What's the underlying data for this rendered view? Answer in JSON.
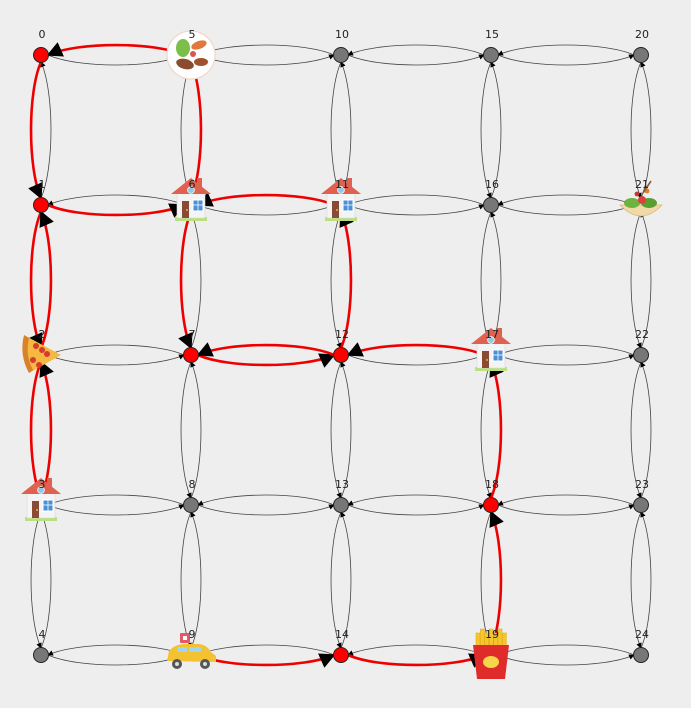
{
  "graph": {
    "nodes": [
      {
        "id": 0,
        "label": "0",
        "state": "red",
        "icon": null
      },
      {
        "id": 1,
        "label": "1",
        "state": "red",
        "icon": null
      },
      {
        "id": 2,
        "label": "2",
        "state": "red",
        "icon": "pizza-icon"
      },
      {
        "id": 3,
        "label": "3",
        "state": "red",
        "icon": "house-icon"
      },
      {
        "id": 4,
        "label": "4",
        "state": "grey",
        "icon": null
      },
      {
        "id": 5,
        "label": "5",
        "state": "red",
        "icon": "food-bowl-icon"
      },
      {
        "id": 6,
        "label": "6",
        "state": "red",
        "icon": "house-icon"
      },
      {
        "id": 7,
        "label": "7",
        "state": "red",
        "icon": null
      },
      {
        "id": 8,
        "label": "8",
        "state": "grey",
        "icon": null
      },
      {
        "id": 9,
        "label": "9",
        "state": "red",
        "icon": "taxi-icon"
      },
      {
        "id": 10,
        "label": "10",
        "state": "grey",
        "icon": null
      },
      {
        "id": 11,
        "label": "11",
        "state": "red",
        "icon": "house-icon"
      },
      {
        "id": 12,
        "label": "12",
        "state": "red",
        "icon": null
      },
      {
        "id": 13,
        "label": "13",
        "state": "grey",
        "icon": null
      },
      {
        "id": 14,
        "label": "14",
        "state": "red",
        "icon": null
      },
      {
        "id": 15,
        "label": "15",
        "state": "grey",
        "icon": null
      },
      {
        "id": 16,
        "label": "16",
        "state": "grey",
        "icon": null
      },
      {
        "id": 17,
        "label": "17",
        "state": "red",
        "icon": "house-icon"
      },
      {
        "id": 18,
        "label": "18",
        "state": "red",
        "icon": null
      },
      {
        "id": 19,
        "label": "19",
        "state": "red",
        "icon": "fries-icon"
      },
      {
        "id": 20,
        "label": "20",
        "state": "grey",
        "icon": null
      },
      {
        "id": 21,
        "label": "21",
        "state": "grey",
        "icon": "salad-icon"
      },
      {
        "id": 22,
        "label": "22",
        "state": "grey",
        "icon": null
      },
      {
        "id": 23,
        "label": "23",
        "state": "grey",
        "icon": null
      },
      {
        "id": 24,
        "label": "24",
        "state": "grey",
        "icon": null
      }
    ],
    "route": [
      [
        9,
        14
      ],
      [
        14,
        19
      ],
      [
        19,
        18
      ],
      [
        18,
        17
      ],
      [
        17,
        12
      ],
      [
        12,
        11
      ],
      [
        11,
        6
      ],
      [
        6,
        5
      ],
      [
        5,
        0
      ],
      [
        0,
        1
      ],
      [
        1,
        2
      ],
      [
        2,
        3
      ],
      [
        3,
        2
      ],
      [
        2,
        1
      ],
      [
        1,
        6
      ],
      [
        6,
        7
      ],
      [
        7,
        12
      ],
      [
        12,
        7
      ]
    ],
    "colors": {
      "background": "#eeeeee",
      "route": "#ee0000",
      "edge": "#444444",
      "node_red": "#ff0000",
      "node_grey": "#777777"
    }
  }
}
